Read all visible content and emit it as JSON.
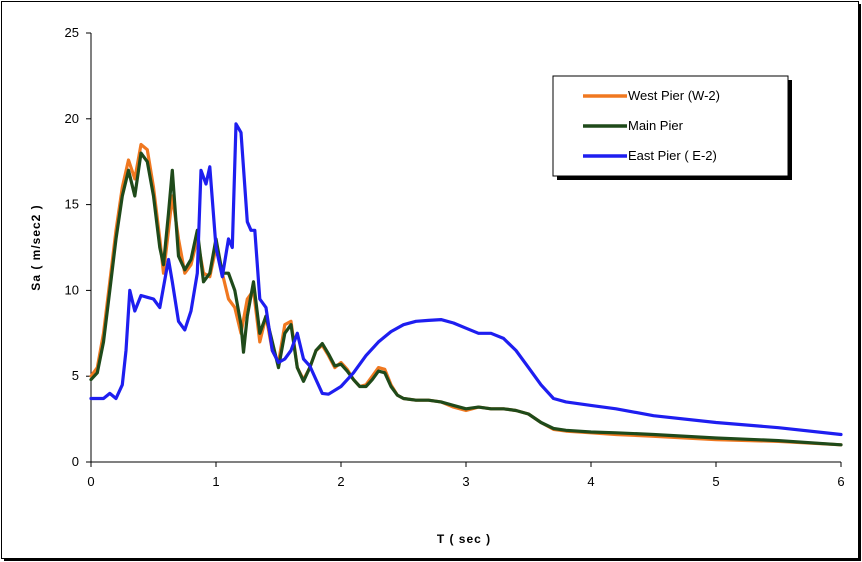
{
  "chart_data": {
    "type": "line",
    "title": "",
    "xlabel": "T ( sec )",
    "ylabel": "Sa ( m/sec2 )",
    "xlim": [
      0,
      6
    ],
    "ylim": [
      0,
      25
    ],
    "xticks": [
      "0",
      "1",
      "2",
      "3",
      "4",
      "5",
      "6"
    ],
    "yticks": [
      "0",
      "5",
      "10",
      "15",
      "20",
      "25"
    ],
    "grid": false,
    "legend_position": "top-right",
    "series": [
      {
        "name": "West Pier (W-2)",
        "color": "#f07820",
        "points": [
          [
            0,
            5.0
          ],
          [
            0.05,
            5.5
          ],
          [
            0.1,
            7.5
          ],
          [
            0.15,
            10.5
          ],
          [
            0.2,
            13.5
          ],
          [
            0.25,
            16.0
          ],
          [
            0.3,
            17.6
          ],
          [
            0.35,
            16.5
          ],
          [
            0.4,
            18.5
          ],
          [
            0.45,
            18.2
          ],
          [
            0.5,
            16.0
          ],
          [
            0.55,
            13.0
          ],
          [
            0.58,
            11.0
          ],
          [
            0.62,
            13.5
          ],
          [
            0.65,
            15.5
          ],
          [
            0.7,
            13.0
          ],
          [
            0.75,
            11.0
          ],
          [
            0.8,
            11.5
          ],
          [
            0.85,
            13.0
          ],
          [
            0.9,
            11.0
          ],
          [
            0.95,
            10.8
          ],
          [
            1.0,
            12.5
          ],
          [
            1.05,
            11.0
          ],
          [
            1.1,
            9.5
          ],
          [
            1.15,
            9.0
          ],
          [
            1.2,
            7.5
          ],
          [
            1.25,
            9.5
          ],
          [
            1.3,
            10.0
          ],
          [
            1.35,
            7.0
          ],
          [
            1.4,
            8.5
          ],
          [
            1.45,
            6.5
          ],
          [
            1.5,
            5.8
          ],
          [
            1.55,
            8.0
          ],
          [
            1.6,
            8.2
          ],
          [
            1.65,
            5.5
          ],
          [
            1.7,
            4.8
          ],
          [
            1.75,
            5.5
          ],
          [
            1.8,
            6.5
          ],
          [
            1.85,
            6.8
          ],
          [
            1.9,
            6.2
          ],
          [
            1.95,
            5.5
          ],
          [
            2.0,
            5.8
          ],
          [
            2.05,
            5.4
          ],
          [
            2.1,
            4.8
          ],
          [
            2.15,
            4.4
          ],
          [
            2.2,
            4.5
          ],
          [
            2.25,
            5.0
          ],
          [
            2.3,
            5.5
          ],
          [
            2.35,
            5.4
          ],
          [
            2.4,
            4.5
          ],
          [
            2.45,
            3.9
          ],
          [
            2.5,
            3.7
          ],
          [
            2.6,
            3.6
          ],
          [
            2.7,
            3.6
          ],
          [
            2.8,
            3.5
          ],
          [
            2.9,
            3.2
          ],
          [
            3.0,
            3.0
          ],
          [
            3.1,
            3.2
          ],
          [
            3.2,
            3.1
          ],
          [
            3.3,
            3.1
          ],
          [
            3.4,
            3.0
          ],
          [
            3.5,
            2.8
          ],
          [
            3.6,
            2.3
          ],
          [
            3.7,
            1.9
          ],
          [
            3.8,
            1.8
          ],
          [
            4.0,
            1.7
          ],
          [
            4.2,
            1.6
          ],
          [
            4.5,
            1.5
          ],
          [
            5.0,
            1.3
          ],
          [
            5.5,
            1.2
          ],
          [
            6.0,
            1.0
          ]
        ]
      },
      {
        "name": "Main Pier",
        "color": "#1f4a1a",
        "points": [
          [
            0,
            4.8
          ],
          [
            0.05,
            5.2
          ],
          [
            0.1,
            7.0
          ],
          [
            0.15,
            10.0
          ],
          [
            0.2,
            13.0
          ],
          [
            0.25,
            15.5
          ],
          [
            0.3,
            17.0
          ],
          [
            0.35,
            15.5
          ],
          [
            0.4,
            18.0
          ],
          [
            0.45,
            17.5
          ],
          [
            0.5,
            15.5
          ],
          [
            0.55,
            12.5
          ],
          [
            0.58,
            11.5
          ],
          [
            0.62,
            14.5
          ],
          [
            0.65,
            17.0
          ],
          [
            0.7,
            12.0
          ],
          [
            0.75,
            11.2
          ],
          [
            0.8,
            11.8
          ],
          [
            0.85,
            13.5
          ],
          [
            0.9,
            10.5
          ],
          [
            0.95,
            11.0
          ],
          [
            1.0,
            13.0
          ],
          [
            1.05,
            11.0
          ],
          [
            1.1,
            11.0
          ],
          [
            1.15,
            10.0
          ],
          [
            1.2,
            8.0
          ],
          [
            1.22,
            6.4
          ],
          [
            1.25,
            8.5
          ],
          [
            1.3,
            10.5
          ],
          [
            1.35,
            7.5
          ],
          [
            1.4,
            8.5
          ],
          [
            1.45,
            7.0
          ],
          [
            1.5,
            5.5
          ],
          [
            1.55,
            7.5
          ],
          [
            1.6,
            8.0
          ],
          [
            1.65,
            5.5
          ],
          [
            1.7,
            4.7
          ],
          [
            1.75,
            5.5
          ],
          [
            1.8,
            6.5
          ],
          [
            1.85,
            6.9
          ],
          [
            1.9,
            6.3
          ],
          [
            1.95,
            5.6
          ],
          [
            2.0,
            5.7
          ],
          [
            2.05,
            5.3
          ],
          [
            2.1,
            4.8
          ],
          [
            2.15,
            4.4
          ],
          [
            2.2,
            4.4
          ],
          [
            2.25,
            4.8
          ],
          [
            2.3,
            5.3
          ],
          [
            2.35,
            5.2
          ],
          [
            2.4,
            4.4
          ],
          [
            2.45,
            3.9
          ],
          [
            2.5,
            3.7
          ],
          [
            2.6,
            3.6
          ],
          [
            2.7,
            3.6
          ],
          [
            2.8,
            3.5
          ],
          [
            2.9,
            3.3
          ],
          [
            3.0,
            3.1
          ],
          [
            3.1,
            3.2
          ],
          [
            3.2,
            3.1
          ],
          [
            3.3,
            3.1
          ],
          [
            3.4,
            3.0
          ],
          [
            3.5,
            2.8
          ],
          [
            3.6,
            2.3
          ],
          [
            3.7,
            1.95
          ],
          [
            3.8,
            1.85
          ],
          [
            4.0,
            1.75
          ],
          [
            4.2,
            1.7
          ],
          [
            4.5,
            1.6
          ],
          [
            5.0,
            1.4
          ],
          [
            5.5,
            1.25
          ],
          [
            6.0,
            1.0
          ]
        ]
      },
      {
        "name": "East Pier ( E-2)",
        "color": "#1e1ef0",
        "points": [
          [
            0,
            3.7
          ],
          [
            0.1,
            3.7
          ],
          [
            0.15,
            4.0
          ],
          [
            0.2,
            3.7
          ],
          [
            0.25,
            4.5
          ],
          [
            0.28,
            6.5
          ],
          [
            0.31,
            10.0
          ],
          [
            0.35,
            8.8
          ],
          [
            0.4,
            9.7
          ],
          [
            0.45,
            9.6
          ],
          [
            0.5,
            9.5
          ],
          [
            0.55,
            9.0
          ],
          [
            0.6,
            11.0
          ],
          [
            0.62,
            11.8
          ],
          [
            0.65,
            10.5
          ],
          [
            0.7,
            8.2
          ],
          [
            0.75,
            7.7
          ],
          [
            0.8,
            8.8
          ],
          [
            0.85,
            11.0
          ],
          [
            0.88,
            17.0
          ],
          [
            0.92,
            16.2
          ],
          [
            0.95,
            17.2
          ],
          [
            1.0,
            12.5
          ],
          [
            1.05,
            10.8
          ],
          [
            1.1,
            13.0
          ],
          [
            1.13,
            12.5
          ],
          [
            1.16,
            19.7
          ],
          [
            1.2,
            19.2
          ],
          [
            1.25,
            14.0
          ],
          [
            1.28,
            13.5
          ],
          [
            1.31,
            13.5
          ],
          [
            1.35,
            9.5
          ],
          [
            1.4,
            9.0
          ],
          [
            1.45,
            6.5
          ],
          [
            1.5,
            5.8
          ],
          [
            1.55,
            6.0
          ],
          [
            1.6,
            6.5
          ],
          [
            1.65,
            7.5
          ],
          [
            1.7,
            6.0
          ],
          [
            1.75,
            5.6
          ],
          [
            1.8,
            4.8
          ],
          [
            1.85,
            4.0
          ],
          [
            1.9,
            3.95
          ],
          [
            2.0,
            4.4
          ],
          [
            2.1,
            5.2
          ],
          [
            2.2,
            6.2
          ],
          [
            2.3,
            7.0
          ],
          [
            2.4,
            7.6
          ],
          [
            2.5,
            8.0
          ],
          [
            2.6,
            8.2
          ],
          [
            2.7,
            8.25
          ],
          [
            2.8,
            8.3
          ],
          [
            2.9,
            8.1
          ],
          [
            3.0,
            7.8
          ],
          [
            3.1,
            7.5
          ],
          [
            3.2,
            7.5
          ],
          [
            3.3,
            7.2
          ],
          [
            3.4,
            6.5
          ],
          [
            3.5,
            5.5
          ],
          [
            3.6,
            4.5
          ],
          [
            3.7,
            3.7
          ],
          [
            3.8,
            3.5
          ],
          [
            4.0,
            3.3
          ],
          [
            4.2,
            3.1
          ],
          [
            4.5,
            2.7
          ],
          [
            5.0,
            2.3
          ],
          [
            5.5,
            2.0
          ],
          [
            6.0,
            1.6
          ]
        ]
      }
    ]
  }
}
